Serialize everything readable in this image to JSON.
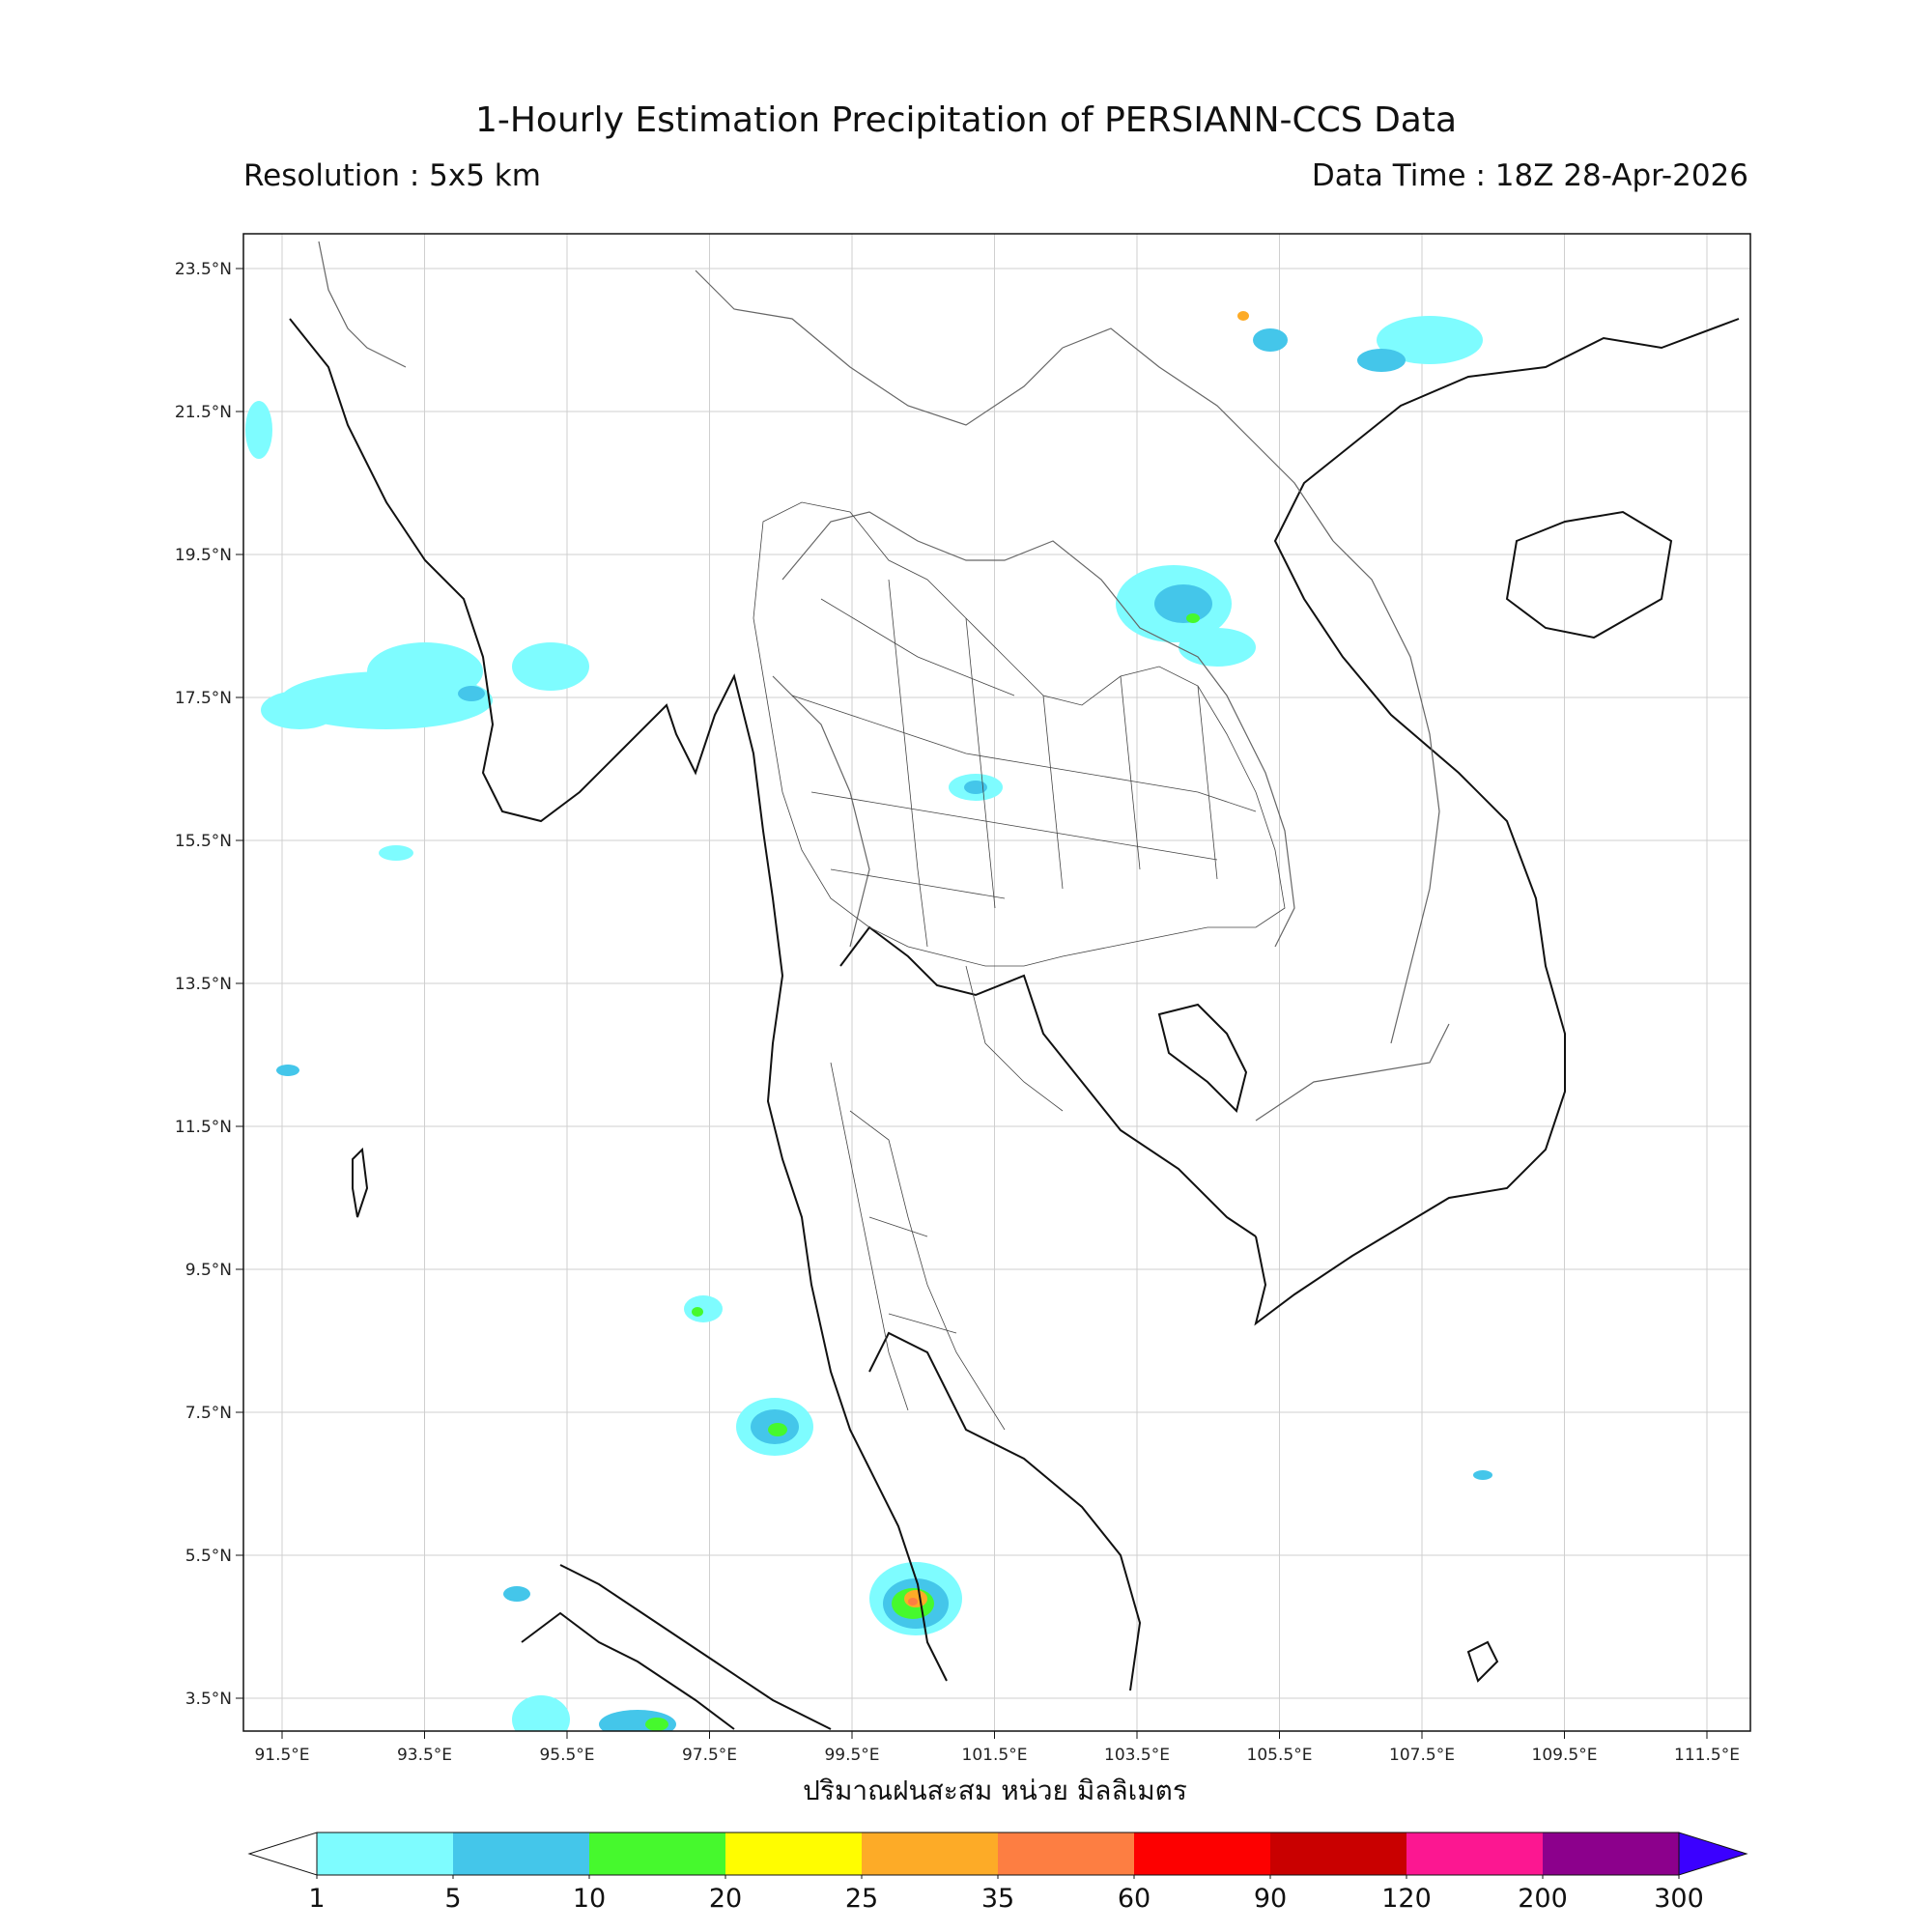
{
  "header": {
    "title": "1-Hourly Estimation Precipitation of PERSIANN-CCS Data",
    "resolution": "Resolution : 5x5 km",
    "data_time": "Data Time : 18Z 28-Apr-2026"
  },
  "map": {
    "lon_ticks": [
      "91.5°E",
      "93.5°E",
      "95.5°E",
      "97.5°E",
      "99.5°E",
      "101.5°E",
      "103.5°E",
      "105.5°E",
      "107.5°E",
      "109.5°E",
      "111.5°E"
    ],
    "lat_ticks": [
      "23.5°N",
      "21.5°N",
      "19.5°N",
      "17.5°N",
      "15.5°N",
      "13.5°N",
      "11.5°N",
      "9.5°N",
      "7.5°N",
      "5.5°N",
      "3.5°N"
    ],
    "x_label": "ปริมาณฝนสะสม หน่วย มิลลิเมตร"
  },
  "colorbar": {
    "levels": [
      "1",
      "5",
      "10",
      "20",
      "25",
      "35",
      "60",
      "90",
      "120",
      "200",
      "300"
    ],
    "colors": [
      "#7efcff",
      "#44c6ea",
      "#46f92d",
      "#fffd00",
      "#fdab27",
      "#fd7e42",
      "#fd0000",
      "#c90000",
      "#fc1791",
      "#8c008c",
      "#3b00ff"
    ]
  }
}
